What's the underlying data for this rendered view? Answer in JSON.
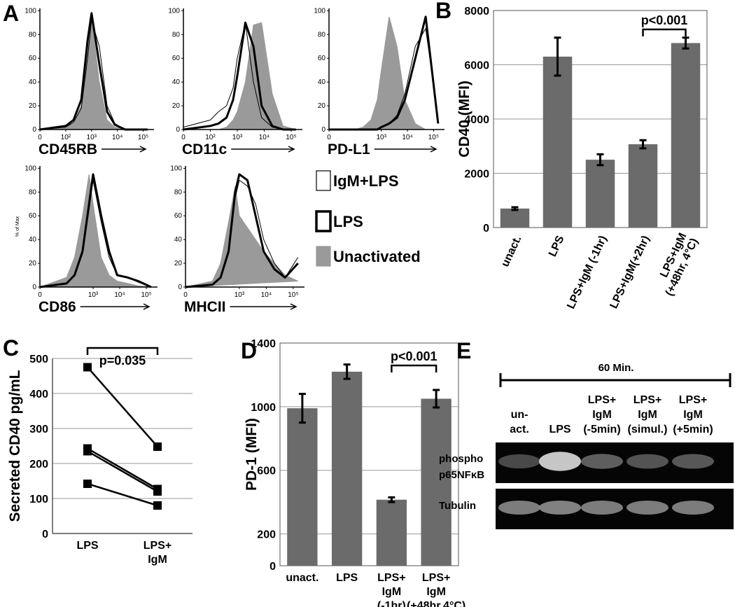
{
  "chart_data": [
    {
      "type": "density",
      "panel": "A",
      "xlabel": "CD45RB",
      "x": [
        0,
        100,
        200,
        400,
        700,
        1000,
        2000,
        4000,
        8000,
        20000,
        50000,
        150000
      ],
      "xlim": [
        0,
        262144
      ],
      "xticks": [
        0,
        {
          "value": 100,
          "label": "10²"
        },
        {
          "value": 1000,
          "label": "10³"
        },
        {
          "value": 10000,
          "label": "10⁴"
        },
        {
          "value": 100000,
          "label": "10⁵"
        }
      ],
      "ylim": [
        0,
        102
      ],
      "yticks": [
        0,
        20,
        40,
        60,
        80,
        100
      ],
      "series": [
        {
          "name": "IgM+LPS",
          "color": "#000000",
          "style": "thin",
          "values": [
            0,
            2,
            6,
            18,
            60,
            92,
            70,
            20,
            5,
            0,
            0,
            0
          ]
        },
        {
          "name": "LPS",
          "color": "#000000",
          "style": "thick",
          "values": [
            0,
            3,
            8,
            25,
            75,
            98,
            55,
            15,
            4,
            0,
            0,
            0
          ]
        },
        {
          "name": "Unactivated",
          "color": "#9a9a9a",
          "style": "filled",
          "values": [
            0,
            2,
            5,
            20,
            70,
            95,
            40,
            8,
            2,
            0,
            0,
            0
          ]
        }
      ]
    },
    {
      "type": "density",
      "xlabel": "CD11c",
      "x": [
        0,
        100,
        200,
        400,
        700,
        1000,
        2000,
        4000,
        8000,
        20000,
        50000,
        150000
      ],
      "xlim": [
        0,
        262144
      ],
      "xticks": [
        0,
        {
          "value": 100,
          "label": "10²"
        },
        {
          "value": 1000,
          "label": "10³"
        },
        {
          "value": 10000,
          "label": "10⁴"
        },
        {
          "value": 100000,
          "label": "10⁵"
        }
      ],
      "ylim": [
        0,
        102
      ],
      "yticks": [
        0,
        20,
        40,
        60,
        80,
        100
      ],
      "series": [
        {
          "color": "#000000",
          "style": "thin",
          "values": [
            2,
            8,
            15,
            20,
            35,
            60,
            90,
            40,
            10,
            2,
            0,
            0
          ]
        },
        {
          "color": "#000000",
          "style": "thick",
          "values": [
            0,
            3,
            5,
            10,
            25,
            45,
            90,
            70,
            20,
            3,
            0,
            0
          ]
        },
        {
          "color": "#9a9a9a",
          "style": "filled",
          "values": [
            0,
            0,
            0,
            2,
            8,
            15,
            40,
            88,
            90,
            30,
            3,
            0
          ]
        }
      ]
    },
    {
      "type": "density",
      "xlabel": "PD-L1",
      "x": [
        0,
        100,
        200,
        400,
        700,
        1000,
        2000,
        4000,
        8000,
        20000,
        50000,
        150000
      ],
      "xlim": [
        0,
        262144
      ],
      "xticks": [
        0,
        {
          "value": 1000,
          "label": "10³"
        },
        {
          "value": 10000,
          "label": "10⁴"
        },
        {
          "value": 100000,
          "label": "10⁵"
        }
      ],
      "ylim": [
        0,
        102
      ],
      "yticks": [
        0,
        20,
        40,
        60,
        80,
        100
      ],
      "series": [
        {
          "color": "#000000",
          "style": "thin",
          "values": [
            0,
            0,
            0,
            0,
            0,
            2,
            5,
            12,
            30,
            70,
            85,
            10
          ]
        },
        {
          "color": "#000000",
          "style": "thick",
          "values": [
            0,
            0,
            0,
            0,
            0,
            2,
            5,
            10,
            25,
            60,
            95,
            5
          ]
        },
        {
          "color": "#9a9a9a",
          "style": "filled",
          "values": [
            0,
            0,
            2,
            8,
            25,
            50,
            95,
            70,
            25,
            5,
            0,
            0
          ]
        }
      ]
    },
    {
      "type": "density",
      "xlabel": "CD86",
      "ylabel": "% of Max",
      "x": [
        0,
        100,
        200,
        400,
        700,
        1000,
        2000,
        4000,
        8000,
        20000,
        50000,
        150000
      ],
      "xlim": [
        0,
        262144
      ],
      "xticks": [
        0,
        {
          "value": 1000,
          "label": "10³"
        },
        {
          "value": 10000,
          "label": "10⁴"
        },
        {
          "value": 100000,
          "label": "10⁵"
        }
      ],
      "ylim": [
        0,
        102
      ],
      "yticks": [
        0,
        20,
        40,
        60,
        80,
        100
      ],
      "series": [
        {
          "color": "#000000",
          "style": "thin",
          "values": [
            0,
            3,
            10,
            28,
            65,
            90,
            55,
            25,
            10,
            8,
            4,
            0
          ]
        },
        {
          "color": "#000000",
          "style": "thick",
          "values": [
            0,
            3,
            10,
            30,
            70,
            95,
            60,
            30,
            10,
            8,
            5,
            0
          ]
        },
        {
          "color": "#9a9a9a",
          "style": "filled",
          "values": [
            0,
            8,
            25,
            60,
            95,
            70,
            25,
            10,
            5,
            3,
            1,
            0
          ]
        }
      ]
    },
    {
      "type": "density",
      "xlabel": "MHCII",
      "x": [
        0,
        100,
        200,
        400,
        700,
        1000,
        2000,
        4000,
        8000,
        20000,
        50000,
        150000
      ],
      "xlim": [
        0,
        262144
      ],
      "xticks": [
        0,
        {
          "value": 1000,
          "label": "10³"
        },
        {
          "value": 10000,
          "label": "10⁴"
        },
        {
          "value": 100000,
          "label": "10⁵"
        }
      ],
      "ylim": [
        0,
        102
      ],
      "yticks": [
        0,
        20,
        40,
        60,
        80,
        100
      ],
      "series": [
        {
          "color": "#000000",
          "style": "thin",
          "values": [
            0,
            2,
            8,
            28,
            75,
            90,
            85,
            70,
            40,
            20,
            8,
            25
          ]
        },
        {
          "color": "#000000",
          "style": "thick",
          "values": [
            0,
            2,
            8,
            30,
            80,
            95,
            90,
            60,
            30,
            15,
            8,
            20
          ]
        },
        {
          "color": "#9a9a9a",
          "style": "filled",
          "values": [
            0,
            5,
            20,
            55,
            85,
            60,
            50,
            40,
            30,
            20,
            10,
            5
          ]
        }
      ]
    },
    {
      "type": "bar",
      "panel": "B",
      "ylabel": "CD40 (MFI)",
      "categories": [
        [
          "unact."
        ],
        [
          "LPS"
        ],
        [
          "LPS+IgM (-1hr)"
        ],
        [
          "LPS+IgM(+2hr)"
        ],
        [
          "LPS+IgM",
          "(+48hr, 4°C)"
        ]
      ],
      "values": [
        700,
        6300,
        2500,
        3070,
        6800
      ],
      "errors": [
        50,
        700,
        200,
        150,
        200
      ],
      "color": "#6b6b6b",
      "ylim": [
        0,
        8000
      ],
      "yticks": [
        0,
        2000,
        4000,
        6000,
        8000
      ],
      "grid": true,
      "annotation": "p<0.001"
    },
    {
      "type": "line",
      "panel": "C",
      "ylabel": "Secreted CD40 pg/mL",
      "categories": [
        [
          "LPS"
        ],
        [
          "LPS+",
          "IgM"
        ]
      ],
      "series": [
        {
          "color": "#000000",
          "values": [
            475,
            248
          ]
        },
        {
          "color": "#000000",
          "values": [
            243,
            127
          ]
        },
        {
          "color": "#000000",
          "values": [
            235,
            120
          ]
        },
        {
          "color": "#000000",
          "values": [
            142,
            80
          ]
        }
      ],
      "ylim": [
        0,
        500
      ],
      "yticks": [
        0,
        100,
        200,
        300,
        400,
        500
      ],
      "grid": true,
      "annotation": "p=0.035"
    },
    {
      "type": "bar",
      "panel": "D",
      "ylabel": "PD-1 (MFI)",
      "categories": [
        [
          "unact."
        ],
        [
          "LPS"
        ],
        [
          "LPS+",
          "IgM",
          "(-1hr)"
        ],
        [
          "LPS+",
          "IgM",
          "(+48hr,4°C)"
        ]
      ],
      "values": [
        990,
        1220,
        415,
        1050
      ],
      "errors": [
        90,
        45,
        15,
        55
      ],
      "color": "#6b6b6b",
      "ylim": [
        0,
        1400
      ],
      "yticks": [
        0,
        200,
        600,
        1000,
        1400
      ],
      "grid": true,
      "annotation": "p<0.001"
    }
  ],
  "blot": {
    "panel": "E",
    "title": "60 Min.",
    "lanes": [
      [
        "un-",
        "act."
      ],
      [
        "LPS"
      ],
      [
        "LPS+",
        "IgM",
        "(-5min)"
      ],
      [
        "LPS+",
        "IgM",
        "(simul.)"
      ],
      [
        "LPS+",
        "IgM",
        "(+5min)"
      ]
    ],
    "rows": [
      [
        "phospho",
        "p65NFκB"
      ],
      [
        "Tubulin"
      ]
    ]
  }
}
